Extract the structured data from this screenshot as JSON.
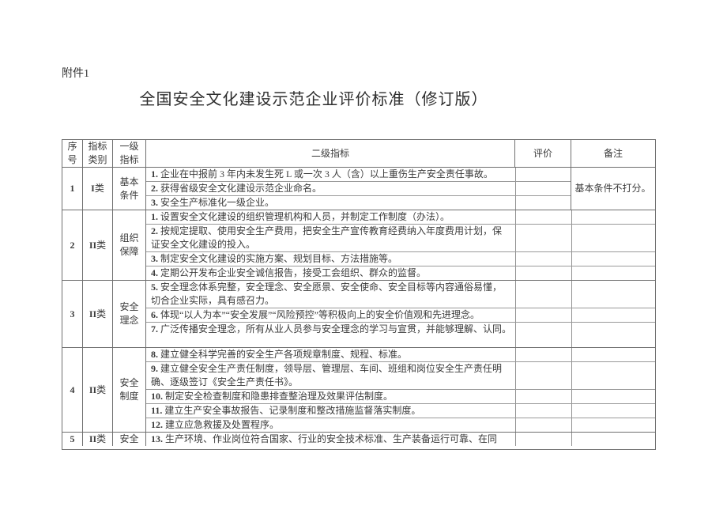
{
  "page": {
    "attachment_label": "附件1",
    "title": "全国安全文化建设示范企业评价标准（修订版）"
  },
  "table": {
    "headers": {
      "no": "序\n号",
      "category": "指标\n类别",
      "level1": "一级\n指标",
      "level2": "二级指标",
      "evaluation": "评价",
      "remark": "备注"
    },
    "groups": [
      {
        "no": "1",
        "category_rn": "I",
        "category_cn": "类",
        "stacked": false,
        "level1": "基本\n条件",
        "remark_merged": "基本条件不打分。",
        "items": [
          {
            "n": "1.",
            "t": "企业在中报前 3 年内未发生死 L 或一次 3 人（含）以上重伤生产安全责任事故。"
          },
          {
            "n": "2.",
            "t": "获得省级安全文化建设示范企业命名。"
          },
          {
            "n": "3.",
            "t": "安全生产标准化一级企业。"
          }
        ]
      },
      {
        "no": "2",
        "category_rn": "II",
        "category_cn": "类",
        "stacked": true,
        "level1": "组织\n保障",
        "remark_merged": null,
        "items": [
          {
            "n": "1.",
            "t": "设置安全文化建设的组织管理机构和人员，并制定工作制度（办法）。"
          },
          {
            "n": "2.",
            "t": "按规定提取、使用安全生产费用，把安全生产宣传教育经费纳入年度费用计划，保\n证安全文化建设的投入。"
          },
          {
            "n": "3.",
            "t": "制定安全文化建设的实施方案、规划目标、方法措施等。"
          },
          {
            "n": "4.",
            "t": "定期公开发布企业安全诚信报告，接受工会组织、群众的监督。"
          }
        ]
      },
      {
        "no": "3",
        "category_rn": "II",
        "category_cn": "类",
        "stacked": true,
        "level1": "安全\n理念",
        "remark_merged": null,
        "items": [
          {
            "n": "5.",
            "t": "安全理念体系完整，安全理念、安全愿景、安全使命、安全目标等内容通俗易懂，\n切合企业实际，具有感召力。"
          },
          {
            "n": "6.",
            "t": "体现“以人为本”“安全发展”“风险预控”等积极向上的安全价值观和先进理念。"
          },
          {
            "n": "7.",
            "t": "广泛传播安全理念，所有从业人员参与安全理念的学习与宣贯，并能够理解、认同。"
          }
        ]
      },
      {
        "no": "4",
        "category_rn": "II",
        "category_cn": "类",
        "stacked": true,
        "level1": "安全\n制度",
        "remark_merged": null,
        "items": [
          {
            "n": "8.",
            "t": "建立健全科学完善的安全生产各项规章制度、规程、标准。"
          },
          {
            "n": "9.",
            "t": "建立健全安全生产责任制度，领导层、管理层、车间、班组和岗位安全生产责任明\n确、逐级签订《安全生产责任书》。"
          },
          {
            "n": "10.",
            "t": "制定安全检查制度和隐患排查整治理及效果评估制度。"
          },
          {
            "n": "11.",
            "t": "建立生产安全事故报告、记录制度和整改措施监督落实制度。"
          },
          {
            "n": "12.",
            "t": "建立应急救援及处置程序。"
          }
        ]
      },
      {
        "no": "5",
        "category_rn": "II",
        "category_cn": "类",
        "stacked": true,
        "level1": "安全",
        "remark_merged": null,
        "items": [
          {
            "n": "13.",
            "t": "生产环境、作业岗位符合国家、行业的安全技术标准、生产装备运行可靠、在同"
          }
        ]
      }
    ]
  }
}
